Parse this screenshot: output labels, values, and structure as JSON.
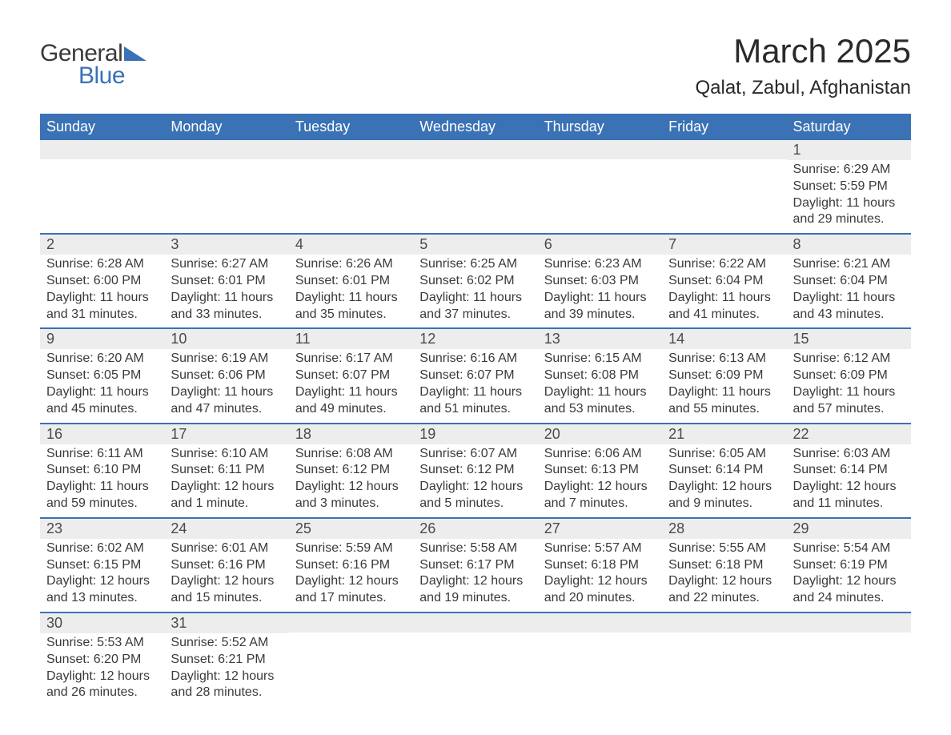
{
  "logo": {
    "text_general": "General",
    "text_blue": "Blue",
    "accent_color": "#3a72b5"
  },
  "title": {
    "month": "March 2025",
    "location": "Qalat, Zabul, Afghanistan"
  },
  "colors": {
    "header_bg": "#3a72b5",
    "header_text": "#ffffff",
    "daynum_bg": "#ededed",
    "body_text": "#3a3a3a",
    "week_border": "#3a72b5",
    "page_bg": "#ffffff"
  },
  "typography": {
    "month_title_fontsize": 42,
    "location_fontsize": 24,
    "header_cell_fontsize": 18,
    "daynum_fontsize": 18,
    "content_fontsize": 16,
    "font_family": "Arial"
  },
  "days_of_week": [
    "Sunday",
    "Monday",
    "Tuesday",
    "Wednesday",
    "Thursday",
    "Friday",
    "Saturday"
  ],
  "weeks": [
    [
      {
        "n": "",
        "sunrise": "",
        "sunset": "",
        "daylight": ""
      },
      {
        "n": "",
        "sunrise": "",
        "sunset": "",
        "daylight": ""
      },
      {
        "n": "",
        "sunrise": "",
        "sunset": "",
        "daylight": ""
      },
      {
        "n": "",
        "sunrise": "",
        "sunset": "",
        "daylight": ""
      },
      {
        "n": "",
        "sunrise": "",
        "sunset": "",
        "daylight": ""
      },
      {
        "n": "",
        "sunrise": "",
        "sunset": "",
        "daylight": ""
      },
      {
        "n": "1",
        "sunrise": "Sunrise: 6:29 AM",
        "sunset": "Sunset: 5:59 PM",
        "daylight": "Daylight: 11 hours and 29 minutes."
      }
    ],
    [
      {
        "n": "2",
        "sunrise": "Sunrise: 6:28 AM",
        "sunset": "Sunset: 6:00 PM",
        "daylight": "Daylight: 11 hours and 31 minutes."
      },
      {
        "n": "3",
        "sunrise": "Sunrise: 6:27 AM",
        "sunset": "Sunset: 6:01 PM",
        "daylight": "Daylight: 11 hours and 33 minutes."
      },
      {
        "n": "4",
        "sunrise": "Sunrise: 6:26 AM",
        "sunset": "Sunset: 6:01 PM",
        "daylight": "Daylight: 11 hours and 35 minutes."
      },
      {
        "n": "5",
        "sunrise": "Sunrise: 6:25 AM",
        "sunset": "Sunset: 6:02 PM",
        "daylight": "Daylight: 11 hours and 37 minutes."
      },
      {
        "n": "6",
        "sunrise": "Sunrise: 6:23 AM",
        "sunset": "Sunset: 6:03 PM",
        "daylight": "Daylight: 11 hours and 39 minutes."
      },
      {
        "n": "7",
        "sunrise": "Sunrise: 6:22 AM",
        "sunset": "Sunset: 6:04 PM",
        "daylight": "Daylight: 11 hours and 41 minutes."
      },
      {
        "n": "8",
        "sunrise": "Sunrise: 6:21 AM",
        "sunset": "Sunset: 6:04 PM",
        "daylight": "Daylight: 11 hours and 43 minutes."
      }
    ],
    [
      {
        "n": "9",
        "sunrise": "Sunrise: 6:20 AM",
        "sunset": "Sunset: 6:05 PM",
        "daylight": "Daylight: 11 hours and 45 minutes."
      },
      {
        "n": "10",
        "sunrise": "Sunrise: 6:19 AM",
        "sunset": "Sunset: 6:06 PM",
        "daylight": "Daylight: 11 hours and 47 minutes."
      },
      {
        "n": "11",
        "sunrise": "Sunrise: 6:17 AM",
        "sunset": "Sunset: 6:07 PM",
        "daylight": "Daylight: 11 hours and 49 minutes."
      },
      {
        "n": "12",
        "sunrise": "Sunrise: 6:16 AM",
        "sunset": "Sunset: 6:07 PM",
        "daylight": "Daylight: 11 hours and 51 minutes."
      },
      {
        "n": "13",
        "sunrise": "Sunrise: 6:15 AM",
        "sunset": "Sunset: 6:08 PM",
        "daylight": "Daylight: 11 hours and 53 minutes."
      },
      {
        "n": "14",
        "sunrise": "Sunrise: 6:13 AM",
        "sunset": "Sunset: 6:09 PM",
        "daylight": "Daylight: 11 hours and 55 minutes."
      },
      {
        "n": "15",
        "sunrise": "Sunrise: 6:12 AM",
        "sunset": "Sunset: 6:09 PM",
        "daylight": "Daylight: 11 hours and 57 minutes."
      }
    ],
    [
      {
        "n": "16",
        "sunrise": "Sunrise: 6:11 AM",
        "sunset": "Sunset: 6:10 PM",
        "daylight": "Daylight: 11 hours and 59 minutes."
      },
      {
        "n": "17",
        "sunrise": "Sunrise: 6:10 AM",
        "sunset": "Sunset: 6:11 PM",
        "daylight": "Daylight: 12 hours and 1 minute."
      },
      {
        "n": "18",
        "sunrise": "Sunrise: 6:08 AM",
        "sunset": "Sunset: 6:12 PM",
        "daylight": "Daylight: 12 hours and 3 minutes."
      },
      {
        "n": "19",
        "sunrise": "Sunrise: 6:07 AM",
        "sunset": "Sunset: 6:12 PM",
        "daylight": "Daylight: 12 hours and 5 minutes."
      },
      {
        "n": "20",
        "sunrise": "Sunrise: 6:06 AM",
        "sunset": "Sunset: 6:13 PM",
        "daylight": "Daylight: 12 hours and 7 minutes."
      },
      {
        "n": "21",
        "sunrise": "Sunrise: 6:05 AM",
        "sunset": "Sunset: 6:14 PM",
        "daylight": "Daylight: 12 hours and 9 minutes."
      },
      {
        "n": "22",
        "sunrise": "Sunrise: 6:03 AM",
        "sunset": "Sunset: 6:14 PM",
        "daylight": "Daylight: 12 hours and 11 minutes."
      }
    ],
    [
      {
        "n": "23",
        "sunrise": "Sunrise: 6:02 AM",
        "sunset": "Sunset: 6:15 PM",
        "daylight": "Daylight: 12 hours and 13 minutes."
      },
      {
        "n": "24",
        "sunrise": "Sunrise: 6:01 AM",
        "sunset": "Sunset: 6:16 PM",
        "daylight": "Daylight: 12 hours and 15 minutes."
      },
      {
        "n": "25",
        "sunrise": "Sunrise: 5:59 AM",
        "sunset": "Sunset: 6:16 PM",
        "daylight": "Daylight: 12 hours and 17 minutes."
      },
      {
        "n": "26",
        "sunrise": "Sunrise: 5:58 AM",
        "sunset": "Sunset: 6:17 PM",
        "daylight": "Daylight: 12 hours and 19 minutes."
      },
      {
        "n": "27",
        "sunrise": "Sunrise: 5:57 AM",
        "sunset": "Sunset: 6:18 PM",
        "daylight": "Daylight: 12 hours and 20 minutes."
      },
      {
        "n": "28",
        "sunrise": "Sunrise: 5:55 AM",
        "sunset": "Sunset: 6:18 PM",
        "daylight": "Daylight: 12 hours and 22 minutes."
      },
      {
        "n": "29",
        "sunrise": "Sunrise: 5:54 AM",
        "sunset": "Sunset: 6:19 PM",
        "daylight": "Daylight: 12 hours and 24 minutes."
      }
    ],
    [
      {
        "n": "30",
        "sunrise": "Sunrise: 5:53 AM",
        "sunset": "Sunset: 6:20 PM",
        "daylight": "Daylight: 12 hours and 26 minutes."
      },
      {
        "n": "31",
        "sunrise": "Sunrise: 5:52 AM",
        "sunset": "Sunset: 6:21 PM",
        "daylight": "Daylight: 12 hours and 28 minutes."
      },
      {
        "n": "",
        "sunrise": "",
        "sunset": "",
        "daylight": ""
      },
      {
        "n": "",
        "sunrise": "",
        "sunset": "",
        "daylight": ""
      },
      {
        "n": "",
        "sunrise": "",
        "sunset": "",
        "daylight": ""
      },
      {
        "n": "",
        "sunrise": "",
        "sunset": "",
        "daylight": ""
      },
      {
        "n": "",
        "sunrise": "",
        "sunset": "",
        "daylight": ""
      }
    ]
  ]
}
